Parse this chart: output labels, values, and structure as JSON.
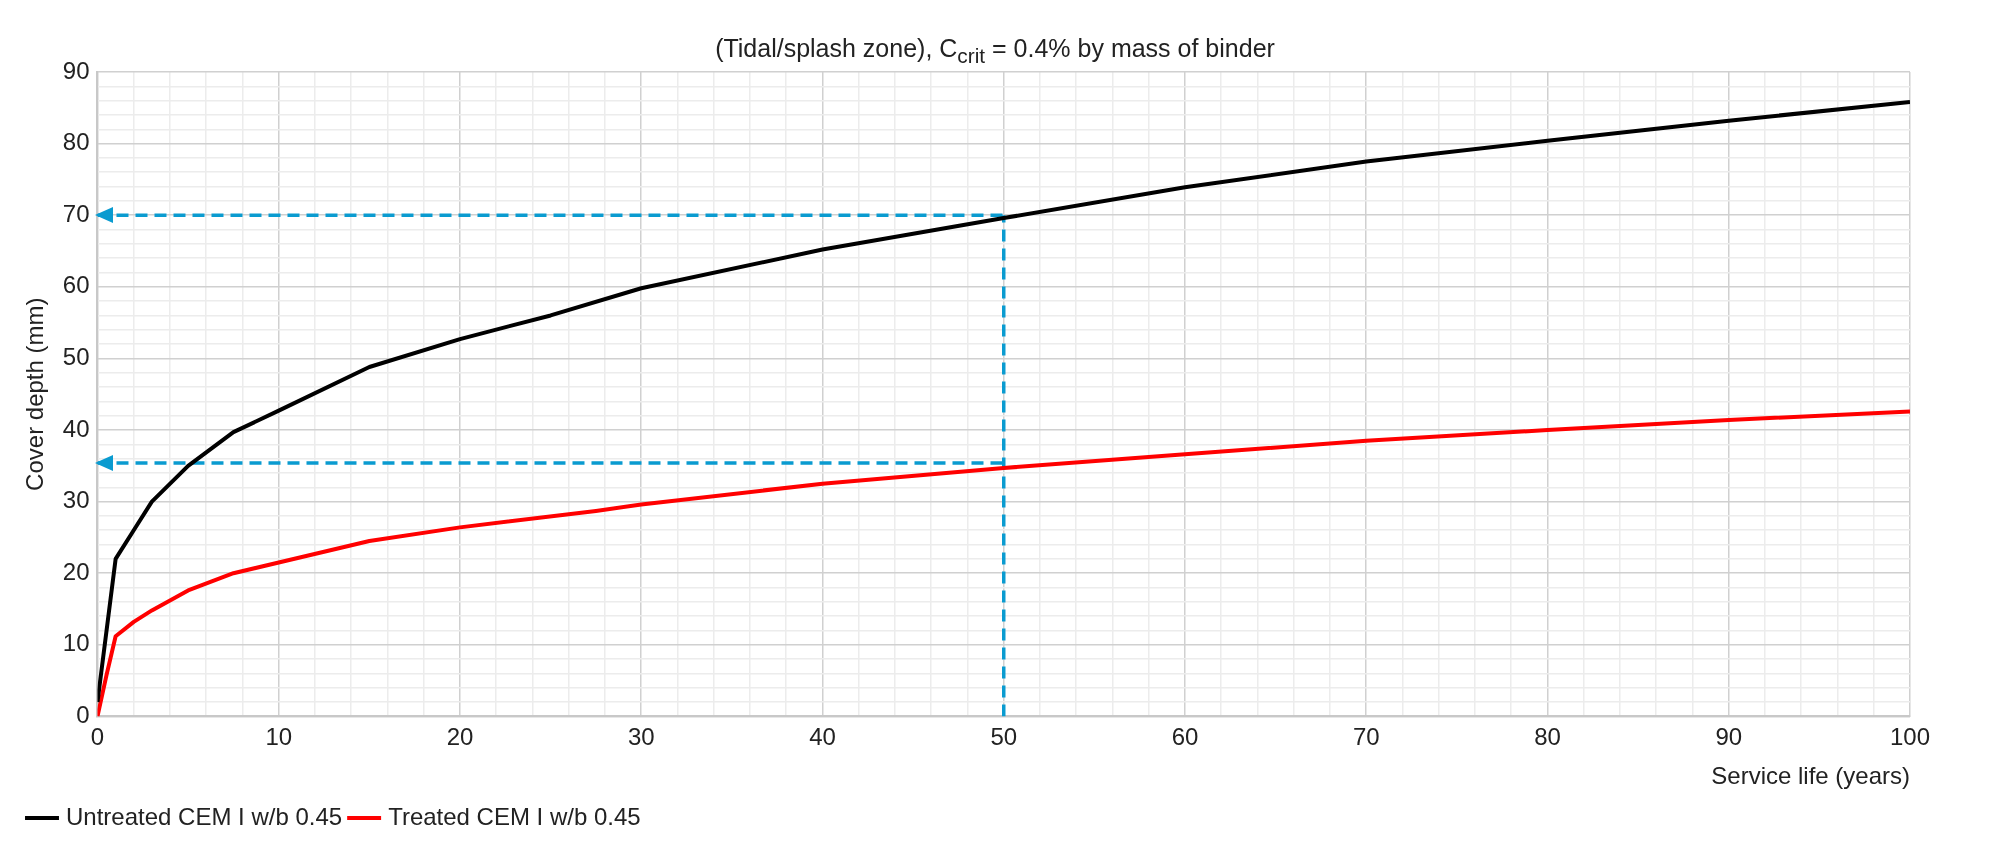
{
  "chart_data": {
    "type": "line",
    "title": "(Tidal/splash zone), C$_{crit}$ = 0.4% by mass of binder",
    "xlabel": "Service life (years)",
    "ylabel": "Cover depth (mm)",
    "xlim": [
      0,
      100
    ],
    "ylim": [
      0,
      90
    ],
    "xticks": [
      0,
      {
        "value": 2,
        "label": null
      },
      {
        "value": 4,
        "label": null
      },
      {
        "value": 6,
        "label": null
      },
      {
        "value": 8,
        "label": null
      },
      10,
      {
        "value": 12,
        "label": null
      },
      {
        "value": 14,
        "label": null
      },
      {
        "value": 16,
        "label": null
      },
      {
        "value": 18,
        "label": null
      },
      20,
      {
        "value": 22,
        "label": null
      },
      {
        "value": 24,
        "label": null
      },
      {
        "value": 26,
        "label": null
      },
      {
        "value": 28,
        "label": null
      },
      30,
      {
        "value": 32,
        "label": null
      },
      {
        "value": 34,
        "label": null
      },
      {
        "value": 36,
        "label": null
      },
      {
        "value": 38,
        "label": null
      },
      40,
      {
        "value": 42,
        "label": null
      },
      {
        "value": 44,
        "label": null
      },
      {
        "value": 46,
        "label": null
      },
      {
        "value": 48,
        "label": null
      },
      50,
      {
        "value": 52,
        "label": null
      },
      {
        "value": 54,
        "label": null
      },
      {
        "value": 56,
        "label": null
      },
      {
        "value": 58,
        "label": null
      },
      60,
      {
        "value": 62,
        "label": null
      },
      {
        "value": 64,
        "label": null
      },
      {
        "value": 66,
        "label": null
      },
      {
        "value": 68,
        "label": null
      },
      70,
      {
        "value": 72,
        "label": null
      },
      {
        "value": 74,
        "label": null
      },
      {
        "value": 76,
        "label": null
      },
      {
        "value": 78,
        "label": null
      },
      80,
      {
        "value": 82,
        "label": null
      },
      {
        "value": 84,
        "label": null
      },
      {
        "value": 86,
        "label": null
      },
      {
        "value": 88,
        "label": null
      },
      90,
      {
        "value": 92,
        "label": null
      },
      {
        "value": 94,
        "label": null
      },
      {
        "value": 96,
        "label": null
      },
      {
        "value": 98,
        "label": null
      },
      100
    ],
    "yticks": [
      0,
      {
        "value": 2,
        "label": null
      },
      {
        "value": 4,
        "label": null
      },
      {
        "value": 6,
        "label": null
      },
      {
        "value": 8,
        "label": null
      },
      10,
      {
        "value": 12,
        "label": null
      },
      {
        "value": 14,
        "label": null
      },
      {
        "value": 16,
        "label": null
      },
      {
        "value": 18,
        "label": null
      },
      20,
      {
        "value": 22,
        "label": null
      },
      {
        "value": 24,
        "label": null
      },
      {
        "value": 26,
        "label": null
      },
      {
        "value": 28,
        "label": null
      },
      30,
      {
        "value": 32,
        "label": null
      },
      {
        "value": 34,
        "label": null
      },
      {
        "value": 36,
        "label": null
      },
      {
        "value": 38,
        "label": null
      },
      40,
      {
        "value": 42,
        "label": null
      },
      {
        "value": 44,
        "label": null
      },
      {
        "value": 46,
        "label": null
      },
      {
        "value": 48,
        "label": null
      },
      50,
      {
        "value": 52,
        "label": null
      },
      {
        "value": 54,
        "label": null
      },
      {
        "value": 56,
        "label": null
      },
      {
        "value": 58,
        "label": null
      },
      60,
      {
        "value": 62,
        "label": null
      },
      {
        "value": 64,
        "label": null
      },
      {
        "value": 66,
        "label": null
      },
      {
        "value": 68,
        "label": null
      },
      70,
      {
        "value": 72,
        "label": null
      },
      {
        "value": 74,
        "label": null
      },
      {
        "value": 76,
        "label": null
      },
      {
        "value": 78,
        "label": null
      },
      80,
      {
        "value": 82,
        "label": null
      },
      {
        "value": 84,
        "label": null
      },
      {
        "value": 86,
        "label": null
      },
      {
        "value": 88,
        "label": null
      },
      90
    ],
    "grid": true,
    "legend": "bottom left",
    "series": [
      {
        "name": "Untreated CEM I w/b 0.45",
        "color": "#000000",
        "x": [
          0,
          0.5,
          1,
          2,
          3,
          5,
          7.5,
          10,
          15,
          20,
          25,
          30,
          40,
          50,
          60,
          70,
          80,
          90,
          100
        ],
        "values": [
          2,
          12,
          22,
          26,
          30,
          35,
          39.7,
          42.7,
          48.8,
          52.7,
          56,
          59.8,
          65.2,
          69.6,
          73.9,
          77.5,
          80.4,
          83.2,
          85.8
        ]
      },
      {
        "name": "Treated CEM I w/b 0.45",
        "color": "#ff0000",
        "x": [
          0,
          0.5,
          1,
          2,
          3,
          5,
          7.5,
          10,
          15,
          20,
          27.5,
          30,
          40,
          50,
          60,
          70,
          80,
          90,
          100
        ],
        "values": [
          0,
          5.8,
          11.2,
          13.2,
          14.8,
          17.6,
          20,
          21.5,
          24.5,
          26.4,
          28.7,
          29.6,
          32.5,
          34.7,
          36.6,
          38.5,
          40,
          41.4,
          42.6
        ]
      },
      {
        "type": "line",
        "line_style": "dashed",
        "color": "#0a9bd0",
        "x": [
          50,
          50
        ],
        "values": [
          0,
          70
        ]
      },
      {
        "type": "line",
        "line_style": "dashed",
        "color": "#0a9bd0",
        "x": [
          0,
          50
        ],
        "values": [
          70,
          70
        ]
      },
      {
        "type": "line",
        "line_style": "dashed",
        "color": "#0a9bd0",
        "x": [
          0,
          50
        ],
        "values": [
          35.4,
          35.4
        ]
      }
    ]
  }
}
